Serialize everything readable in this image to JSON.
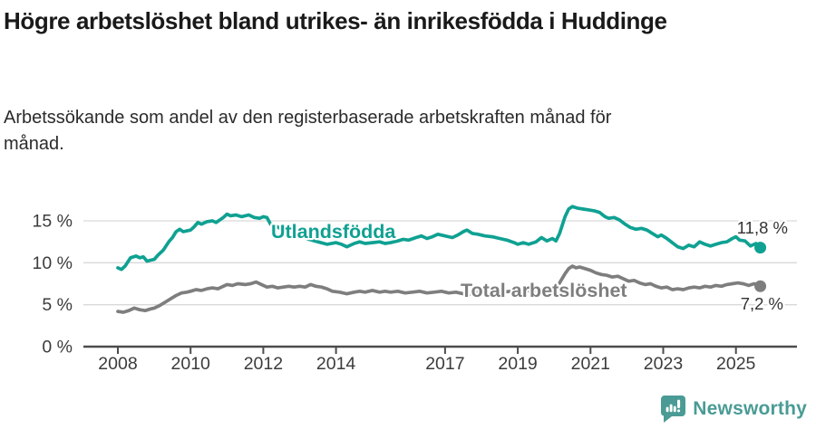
{
  "header": {
    "title": "Högre arbetslöshet bland utrikes- än inrikesfödda i Huddinge",
    "subtitle": "Arbetssökande som andel av den registerbaserade arbetskraften månad för månad."
  },
  "footer": {
    "brand": "Newsworthy",
    "brand_color": "#4a9b95",
    "logo_icon": "newsworthy-speech-bubble-bar-chart-icon"
  },
  "chart_data": {
    "type": "line",
    "title": "Högre arbetslöshet bland utrikes- än inrikesfödda i Huddinge",
    "subtitle": "Arbetssökande som andel av den registerbaserade arbetskraften månad för månad.",
    "unit": "%",
    "grid": true,
    "x_axis": {
      "ticks": [
        2008,
        2010,
        2012,
        2014,
        2017,
        2019,
        2021,
        2023,
        2025
      ],
      "tick_labels": [
        "2008",
        "2010",
        "2012",
        "2014",
        "2017",
        "2019",
        "2021",
        "2023",
        "2025"
      ],
      "range_years": [
        2007.05,
        2026.6
      ]
    },
    "y_axis": {
      "tick_values": [
        0,
        5,
        10,
        15
      ],
      "tick_labels": [
        "0 %",
        "5 %",
        "10 %",
        "15 %"
      ],
      "range": [
        0,
        17.5
      ]
    },
    "colors": {
      "utlandsfodda": "#0fa192",
      "total": "#7e7e7e",
      "grid_line": "#d9d9d9",
      "axis_line": "#4c4c4c",
      "axis_text": "#3c3c3c",
      "end_label_text": "#333333"
    },
    "series": [
      {
        "name": "Utlandsfödda",
        "color_key": "utlandsfodda",
        "end_value": 11.8,
        "end_label": "11,8 %",
        "points": [
          [
            2008.0,
            9.4
          ],
          [
            2008.1,
            9.2
          ],
          [
            2008.2,
            9.6
          ],
          [
            2008.35,
            10.6
          ],
          [
            2008.5,
            10.8
          ],
          [
            2008.6,
            10.6
          ],
          [
            2008.7,
            10.7
          ],
          [
            2008.8,
            10.2
          ],
          [
            2008.9,
            10.3
          ],
          [
            2009.0,
            10.4
          ],
          [
            2009.1,
            10.9
          ],
          [
            2009.25,
            11.5
          ],
          [
            2009.4,
            12.5
          ],
          [
            2009.5,
            13.0
          ],
          [
            2009.6,
            13.7
          ],
          [
            2009.7,
            14.0
          ],
          [
            2009.8,
            13.7
          ],
          [
            2009.9,
            13.8
          ],
          [
            2010.0,
            13.9
          ],
          [
            2010.1,
            14.3
          ],
          [
            2010.2,
            14.8
          ],
          [
            2010.3,
            14.6
          ],
          [
            2010.45,
            14.9
          ],
          [
            2010.6,
            15.0
          ],
          [
            2010.7,
            14.8
          ],
          [
            2010.8,
            15.1
          ],
          [
            2010.9,
            15.4
          ],
          [
            2011.0,
            15.8
          ],
          [
            2011.1,
            15.6
          ],
          [
            2011.25,
            15.7
          ],
          [
            2011.4,
            15.5
          ],
          [
            2011.5,
            15.6
          ],
          [
            2011.6,
            15.7
          ],
          [
            2011.75,
            15.4
          ],
          [
            2011.9,
            15.3
          ],
          [
            2012.0,
            15.5
          ],
          [
            2012.1,
            15.4
          ],
          [
            2012.2,
            14.6
          ],
          [
            2012.3,
            14.5
          ],
          [
            2012.5,
            14.0
          ],
          [
            2012.75,
            13.6
          ],
          [
            2013.0,
            13.2
          ],
          [
            2013.25,
            12.8
          ],
          [
            2013.5,
            12.5
          ],
          [
            2013.75,
            12.2
          ],
          [
            2014.0,
            12.4
          ],
          [
            2014.15,
            12.2
          ],
          [
            2014.3,
            11.9
          ],
          [
            2014.5,
            12.3
          ],
          [
            2014.65,
            12.5
          ],
          [
            2014.8,
            12.3
          ],
          [
            2015.0,
            12.4
          ],
          [
            2015.2,
            12.5
          ],
          [
            2015.35,
            12.3
          ],
          [
            2015.5,
            12.4
          ],
          [
            2015.7,
            12.6
          ],
          [
            2015.85,
            12.8
          ],
          [
            2016.0,
            12.7
          ],
          [
            2016.2,
            13.0
          ],
          [
            2016.35,
            13.2
          ],
          [
            2016.5,
            12.9
          ],
          [
            2016.65,
            13.1
          ],
          [
            2016.8,
            13.4
          ],
          [
            2017.0,
            13.2
          ],
          [
            2017.2,
            13.0
          ],
          [
            2017.35,
            13.3
          ],
          [
            2017.5,
            13.7
          ],
          [
            2017.6,
            13.9
          ],
          [
            2017.75,
            13.5
          ],
          [
            2017.9,
            13.4
          ],
          [
            2018.1,
            13.2
          ],
          [
            2018.3,
            13.1
          ],
          [
            2018.5,
            12.9
          ],
          [
            2018.7,
            12.7
          ],
          [
            2018.9,
            12.4
          ],
          [
            2019.0,
            12.2
          ],
          [
            2019.15,
            12.4
          ],
          [
            2019.3,
            12.2
          ],
          [
            2019.5,
            12.5
          ],
          [
            2019.65,
            13.0
          ],
          [
            2019.8,
            12.6
          ],
          [
            2019.95,
            12.9
          ],
          [
            2020.05,
            12.6
          ],
          [
            2020.15,
            13.5
          ],
          [
            2020.3,
            15.5
          ],
          [
            2020.4,
            16.4
          ],
          [
            2020.5,
            16.7
          ],
          [
            2020.65,
            16.5
          ],
          [
            2020.8,
            16.4
          ],
          [
            2020.95,
            16.3
          ],
          [
            2021.1,
            16.2
          ],
          [
            2021.25,
            16.0
          ],
          [
            2021.4,
            15.5
          ],
          [
            2021.5,
            15.3
          ],
          [
            2021.65,
            15.4
          ],
          [
            2021.8,
            15.1
          ],
          [
            2021.95,
            14.6
          ],
          [
            2022.1,
            14.2
          ],
          [
            2022.25,
            14.0
          ],
          [
            2022.4,
            14.1
          ],
          [
            2022.55,
            13.9
          ],
          [
            2022.7,
            13.5
          ],
          [
            2022.85,
            13.1
          ],
          [
            2022.95,
            13.3
          ],
          [
            2023.1,
            12.9
          ],
          [
            2023.25,
            12.4
          ],
          [
            2023.4,
            11.9
          ],
          [
            2023.55,
            11.7
          ],
          [
            2023.7,
            12.1
          ],
          [
            2023.85,
            11.9
          ],
          [
            2024.0,
            12.5
          ],
          [
            2024.15,
            12.2
          ],
          [
            2024.3,
            12.0
          ],
          [
            2024.45,
            12.2
          ],
          [
            2024.6,
            12.4
          ],
          [
            2024.75,
            12.5
          ],
          [
            2024.9,
            12.9
          ],
          [
            2025.0,
            13.1
          ],
          [
            2025.1,
            12.7
          ],
          [
            2025.25,
            12.6
          ],
          [
            2025.4,
            12.0
          ],
          [
            2025.55,
            12.3
          ],
          [
            2025.67,
            11.8
          ]
        ]
      },
      {
        "name": "Total arbetslöshet",
        "color_key": "total",
        "end_value": 7.2,
        "end_label": "7,2 %",
        "points": [
          [
            2008.0,
            4.2
          ],
          [
            2008.15,
            4.1
          ],
          [
            2008.3,
            4.3
          ],
          [
            2008.45,
            4.6
          ],
          [
            2008.6,
            4.4
          ],
          [
            2008.75,
            4.3
          ],
          [
            2008.9,
            4.5
          ],
          [
            2009.0,
            4.6
          ],
          [
            2009.15,
            4.9
          ],
          [
            2009.3,
            5.3
          ],
          [
            2009.45,
            5.7
          ],
          [
            2009.6,
            6.1
          ],
          [
            2009.75,
            6.4
          ],
          [
            2009.9,
            6.5
          ],
          [
            2010.0,
            6.6
          ],
          [
            2010.15,
            6.8
          ],
          [
            2010.3,
            6.7
          ],
          [
            2010.45,
            6.9
          ],
          [
            2010.6,
            7.0
          ],
          [
            2010.75,
            6.9
          ],
          [
            2010.9,
            7.2
          ],
          [
            2011.0,
            7.4
          ],
          [
            2011.15,
            7.3
          ],
          [
            2011.3,
            7.5
          ],
          [
            2011.5,
            7.4
          ],
          [
            2011.65,
            7.5
          ],
          [
            2011.8,
            7.7
          ],
          [
            2011.95,
            7.4
          ],
          [
            2012.1,
            7.1
          ],
          [
            2012.25,
            7.2
          ],
          [
            2012.4,
            7.0
          ],
          [
            2012.55,
            7.1
          ],
          [
            2012.7,
            7.2
          ],
          [
            2012.85,
            7.1
          ],
          [
            2013.0,
            7.2
          ],
          [
            2013.15,
            7.1
          ],
          [
            2013.3,
            7.4
          ],
          [
            2013.45,
            7.2
          ],
          [
            2013.6,
            7.1
          ],
          [
            2013.75,
            6.9
          ],
          [
            2013.9,
            6.6
          ],
          [
            2014.1,
            6.5
          ],
          [
            2014.3,
            6.3
          ],
          [
            2014.5,
            6.5
          ],
          [
            2014.65,
            6.6
          ],
          [
            2014.8,
            6.5
          ],
          [
            2015.0,
            6.7
          ],
          [
            2015.2,
            6.5
          ],
          [
            2015.35,
            6.6
          ],
          [
            2015.5,
            6.5
          ],
          [
            2015.7,
            6.6
          ],
          [
            2015.9,
            6.4
          ],
          [
            2016.1,
            6.5
          ],
          [
            2016.3,
            6.6
          ],
          [
            2016.5,
            6.4
          ],
          [
            2016.7,
            6.5
          ],
          [
            2016.9,
            6.6
          ],
          [
            2017.1,
            6.4
          ],
          [
            2017.3,
            6.5
          ],
          [
            2017.5,
            6.3
          ],
          [
            2017.65,
            6.2
          ],
          [
            2017.8,
            6.4
          ],
          [
            2018.0,
            6.6
          ],
          [
            2018.2,
            6.5
          ],
          [
            2018.4,
            6.6
          ],
          [
            2018.6,
            6.5
          ],
          [
            2018.8,
            6.6
          ],
          [
            2019.0,
            6.7
          ],
          [
            2019.2,
            6.6
          ],
          [
            2019.4,
            6.7
          ],
          [
            2019.6,
            6.6
          ],
          [
            2019.8,
            6.8
          ],
          [
            2019.95,
            6.7
          ],
          [
            2020.05,
            7.0
          ],
          [
            2020.15,
            7.6
          ],
          [
            2020.3,
            8.7
          ],
          [
            2020.4,
            9.3
          ],
          [
            2020.5,
            9.6
          ],
          [
            2020.6,
            9.4
          ],
          [
            2020.7,
            9.5
          ],
          [
            2020.85,
            9.3
          ],
          [
            2021.0,
            9.1
          ],
          [
            2021.15,
            8.8
          ],
          [
            2021.3,
            8.6
          ],
          [
            2021.45,
            8.5
          ],
          [
            2021.6,
            8.3
          ],
          [
            2021.75,
            8.4
          ],
          [
            2021.9,
            8.1
          ],
          [
            2022.05,
            7.8
          ],
          [
            2022.2,
            7.9
          ],
          [
            2022.35,
            7.6
          ],
          [
            2022.5,
            7.4
          ],
          [
            2022.65,
            7.5
          ],
          [
            2022.8,
            7.2
          ],
          [
            2022.95,
            7.0
          ],
          [
            2023.1,
            7.1
          ],
          [
            2023.25,
            6.8
          ],
          [
            2023.4,
            6.9
          ],
          [
            2023.55,
            6.8
          ],
          [
            2023.7,
            7.0
          ],
          [
            2023.85,
            7.1
          ],
          [
            2024.0,
            7.0
          ],
          [
            2024.15,
            7.2
          ],
          [
            2024.3,
            7.1
          ],
          [
            2024.45,
            7.3
          ],
          [
            2024.6,
            7.2
          ],
          [
            2024.75,
            7.4
          ],
          [
            2024.9,
            7.5
          ],
          [
            2025.05,
            7.6
          ],
          [
            2025.2,
            7.5
          ],
          [
            2025.35,
            7.3
          ],
          [
            2025.5,
            7.5
          ],
          [
            2025.67,
            7.2
          ]
        ]
      }
    ]
  }
}
